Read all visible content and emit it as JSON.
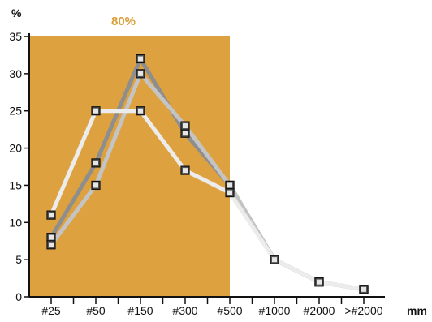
{
  "chart_data": {
    "type": "line",
    "categories": [
      "#25",
      "#50",
      "#150",
      "#300",
      "#500",
      "#1000",
      "#2000",
      ">#2000"
    ],
    "ylabel": "%",
    "xlabel": "mm",
    "ylim": [
      0,
      35
    ],
    "yticks": [
      0,
      5,
      10,
      15,
      20,
      25,
      30,
      35
    ],
    "grid": false,
    "highlight": {
      "label": "80%",
      "from_category": "#25",
      "to_category": "#500",
      "fill_color": "#dda13f",
      "label_color": "#d9a03c"
    },
    "series": [
      {
        "values": [
          8,
          18,
          32,
          22,
          15,
          5,
          2,
          1
        ],
        "color": "#8e8e8e"
      },
      {
        "values": [
          7,
          15,
          30,
          23,
          15,
          5,
          2,
          1
        ],
        "color": "#c4c4c4"
      },
      {
        "values": [
          11,
          25,
          25,
          17,
          14,
          5,
          2,
          1
        ],
        "color": "#ececec"
      }
    ]
  }
}
